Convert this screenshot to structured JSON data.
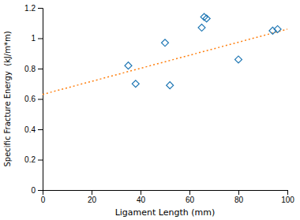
{
  "chart_data": {
    "type": "scatter",
    "xlabel": "Ligament Length (mm)",
    "ylabel": "Specific Fracture Energy  (kJ/m*m)",
    "xlim": [
      0,
      100
    ],
    "ylim": [
      0,
      1.2
    ],
    "xticks": [
      0,
      20,
      40,
      60,
      80,
      100
    ],
    "yticks": [
      0,
      0.2,
      0.4,
      0.6,
      0.8,
      1,
      1.2
    ],
    "series": [
      {
        "type": "scatter",
        "marker": "open-diamond",
        "x": [
          35,
          38,
          50,
          52,
          65,
          66,
          67,
          80,
          94,
          96
        ],
        "values": [
          0.82,
          0.7,
          0.97,
          0.69,
          1.07,
          1.14,
          1.13,
          0.86,
          1.05,
          1.06
        ]
      },
      {
        "type": "line",
        "line_style": "dotted",
        "x": [
          0,
          100
        ],
        "values": [
          0.63,
          1.06
        ]
      }
    ]
  }
}
